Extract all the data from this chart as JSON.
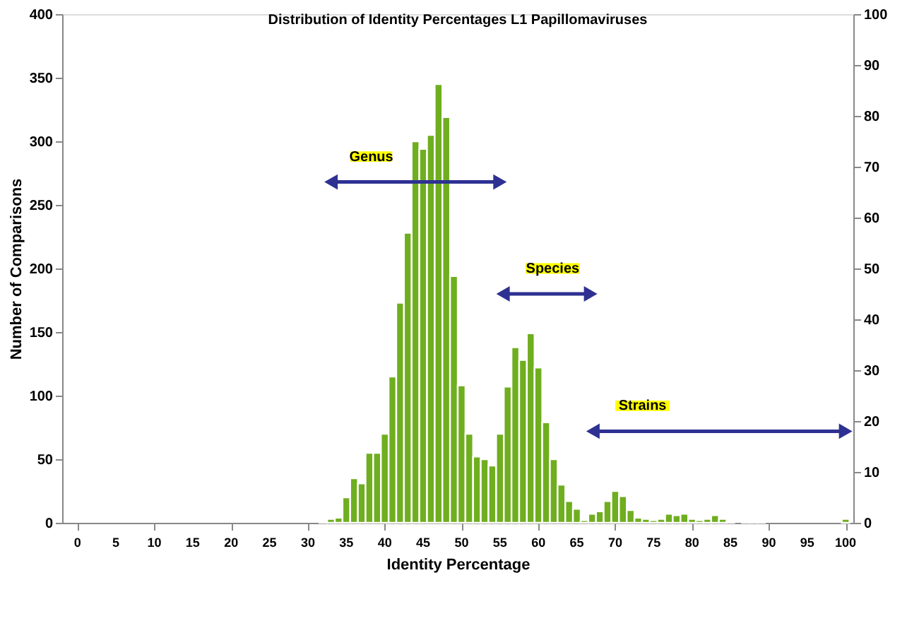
{
  "chart_data": {
    "type": "histogram",
    "title": "Distribution of Identity Percentages L1 Papillomaviruses",
    "xlabel": "Identity Percentage",
    "ylabel": "Number of Comparisons",
    "bins": [
      -0.5,
      0.5,
      1.5,
      2.5,
      3.5,
      4.5,
      5.5,
      6.5,
      7.5,
      8.5,
      9.5,
      10.5,
      11.5,
      12.5,
      13.5,
      14.5,
      15.5,
      16.5,
      17.5,
      18.5,
      19.5,
      20.5,
      21.5,
      22.5,
      23.5,
      24.5,
      25.5,
      26.5,
      27.5,
      28.5,
      29.5,
      30.5,
      31.5,
      32.5,
      33.5,
      34.5,
      35.5,
      36.5,
      37.5,
      38.5,
      39.5,
      40.5,
      41.5,
      42.5,
      43.5,
      44.5,
      45.5,
      46.5,
      47.5,
      48.5,
      49.5,
      50.5,
      51.5,
      52.5,
      53.5,
      54.5,
      55.5,
      56.5,
      57.5,
      58.5,
      59.5,
      60.5,
      61.5,
      62.5,
      63.5,
      64.5,
      65.5,
      66.5,
      67.5,
      68.5,
      69.5,
      70.5,
      71.5,
      72.5,
      73.5,
      74.5,
      75.5,
      76.5,
      77.5,
      78.5,
      79.5,
      80.5,
      81.5,
      82.5,
      83.5,
      84.5,
      85.5,
      86.5,
      87.5,
      88.5,
      89.5,
      90.5,
      91.5,
      92.5,
      93.5,
      94.5,
      95.5,
      96.5,
      97.5,
      98.5,
      99.5,
      100.5
    ],
    "values": [
      0,
      0,
      0,
      0,
      0,
      0,
      0,
      0,
      0,
      0,
      0,
      0,
      0,
      0,
      0,
      0,
      0,
      0,
      0,
      0,
      0,
      0,
      0,
      0,
      0,
      0,
      0,
      0,
      0,
      0,
      0,
      0,
      1,
      3,
      4,
      20,
      35,
      31,
      55,
      55,
      70,
      115,
      173,
      228,
      300,
      294,
      305,
      345,
      319,
      194,
      108,
      70,
      52,
      50,
      45,
      70,
      107,
      138,
      128,
      149,
      122,
      79,
      50,
      30,
      17,
      11,
      2,
      7,
      9,
      17,
      25,
      21,
      10,
      4,
      3,
      2,
      3,
      7,
      6,
      7,
      3,
      2,
      3,
      6,
      3,
      1,
      0,
      1,
      1,
      1,
      0,
      0,
      0,
      0,
      0,
      0,
      0,
      0,
      0,
      0,
      3
    ],
    "color": "#6fae1f",
    "series": [
      {
        "type": "line",
        "marker": "triangle",
        "x": [
          33,
          55
        ],
        "values": [
          268,
          268
        ],
        "color": "#2e3192"
      },
      {
        "type": "line",
        "marker": "triangle",
        "x": [
          55.4,
          66.8
        ],
        "values": [
          180,
          180
        ],
        "color": "#2e3192"
      },
      {
        "type": "line",
        "marker": "triangle",
        "x": [
          67.1,
          100
        ],
        "values": [
          72,
          72
        ],
        "color": "#2e3192"
      }
    ],
    "annotations": [
      "Genus",
      "Species",
      "Strains"
    ],
    "xlim": [
      -2,
      101
    ],
    "xticks": [
      0,
      5,
      10,
      15,
      20,
      25,
      30,
      35,
      40,
      45,
      50,
      55,
      60,
      65,
      70,
      75,
      80,
      85,
      90,
      95,
      100
    ],
    "ylim": [
      0,
      400
    ],
    "yticks": [
      0,
      50,
      100,
      150,
      200,
      250,
      300,
      350,
      400
    ],
    "y2lim": [
      0,
      100
    ],
    "y2ticks": [
      0,
      10,
      20,
      30,
      40,
      50,
      60,
      70,
      80,
      90,
      100
    ],
    "grid": false
  }
}
